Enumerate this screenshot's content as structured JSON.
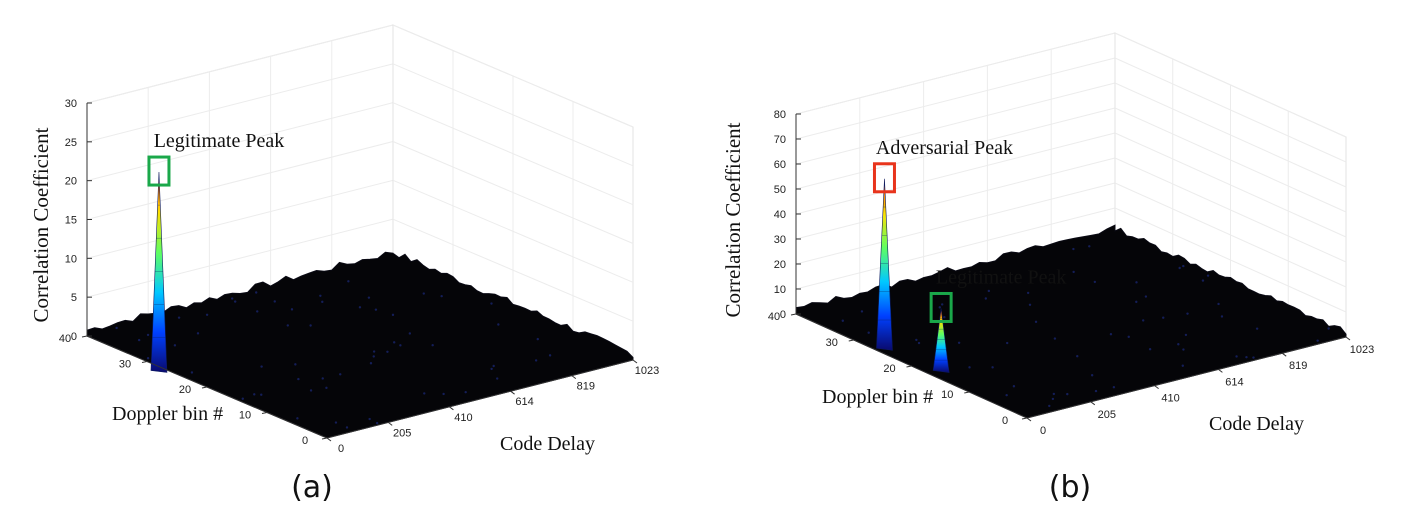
{
  "chart_data": [
    {
      "type": "surface",
      "caption": "(a)",
      "xlabel": "Code Delay",
      "ylabel": "Doppler bin #",
      "zlabel": "Correlation Coefficient",
      "xticks": [
        "0",
        "205",
        "410",
        "614",
        "819",
        "1023"
      ],
      "yticks": [
        "0",
        "10",
        "20",
        "30",
        "40"
      ],
      "zticks": [
        "0",
        "5",
        "10",
        "15",
        "20",
        "25",
        "30"
      ],
      "xlim": [
        0,
        1023
      ],
      "ylim": [
        0,
        40
      ],
      "zlim": [
        0,
        30
      ],
      "grid": true,
      "annotations": [
        {
          "text": "Legitimate Peak",
          "box_color": "#1aa84a",
          "code_delay": 40,
          "doppler": 30,
          "value": 24
        }
      ],
      "peaks": [
        {
          "code_delay": 40,
          "doppler": 30,
          "value": 24
        }
      ]
    },
    {
      "type": "surface",
      "caption": "(b)",
      "xlabel": "Code Delay",
      "ylabel": "Doppler bin #",
      "zlabel": "Correlation Coefficient",
      "xticks": [
        "0",
        "205",
        "410",
        "614",
        "819",
        "1023"
      ],
      "yticks": [
        "0",
        "10",
        "20",
        "30",
        "40"
      ],
      "zticks": [
        "0",
        "10",
        "20",
        "30",
        "40",
        "50",
        "60",
        "70",
        "80"
      ],
      "xlim": [
        0,
        1023
      ],
      "ylim": [
        0,
        40
      ],
      "zlim": [
        0,
        80
      ],
      "grid": true,
      "annotations": [
        {
          "text": "Adversarial Peak",
          "box_color": "#e8341c",
          "code_delay": 80,
          "doppler": 29,
          "value": 63
        },
        {
          "text": "Legitimate Peak",
          "box_color": "#1aa84a",
          "code_delay": 95,
          "doppler": 20,
          "value": 20
        }
      ],
      "peaks": [
        {
          "code_delay": 80,
          "doppler": 29,
          "value": 63
        },
        {
          "code_delay": 95,
          "doppler": 20,
          "value": 20
        }
      ]
    }
  ]
}
